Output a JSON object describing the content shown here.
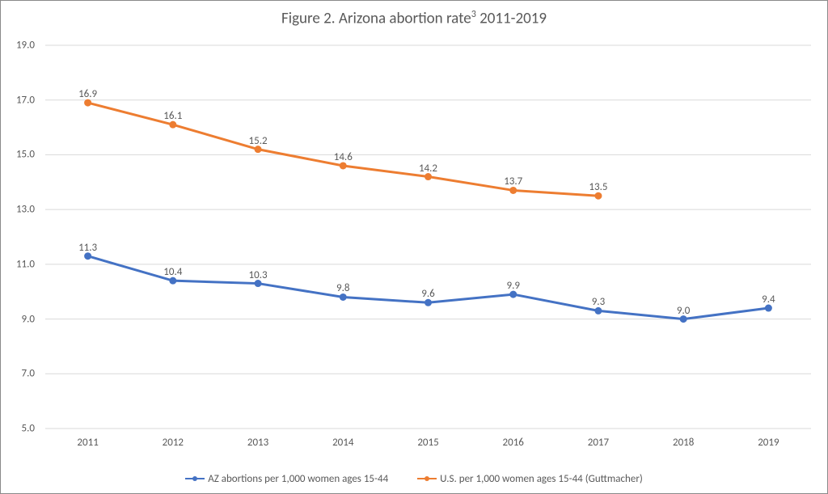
{
  "chart": {
    "type": "line",
    "title_prefix": "Figure 2. Arizona abortion rate",
    "title_sup": "3",
    "title_suffix": " 2011-2019",
    "title_fontsize": 19,
    "sup_fontsize": 12,
    "axis_tick_fontsize": 13,
    "data_label_fontsize": 13,
    "legend_fontsize": 13,
    "background_color": "#ffffff",
    "border_color": "#8a8a8a",
    "text_color": "#595959",
    "grid_color": "#d9d9d9",
    "ylim": [
      5.0,
      19.0
    ],
    "ytick_step": 2.0,
    "y_decimals": 1,
    "categories": [
      "2011",
      "2012",
      "2013",
      "2014",
      "2015",
      "2016",
      "2017",
      "2018",
      "2019"
    ],
    "series": [
      {
        "name": "AZ abortions per 1,000 women ages 15-44",
        "color": "#4472c4",
        "line_width": 3,
        "marker_radius": 4.5,
        "values": [
          11.3,
          10.4,
          10.3,
          9.8,
          9.6,
          9.9,
          9.3,
          9.0,
          9.4
        ]
      },
      {
        "name": "U.S. per 1,000 women ages 15-44 (Guttmacher)",
        "color": "#ed7d31",
        "line_width": 3,
        "marker_radius": 4.5,
        "values": [
          16.9,
          16.1,
          15.2,
          14.6,
          14.2,
          13.7,
          13.5,
          null,
          null
        ]
      }
    ]
  }
}
